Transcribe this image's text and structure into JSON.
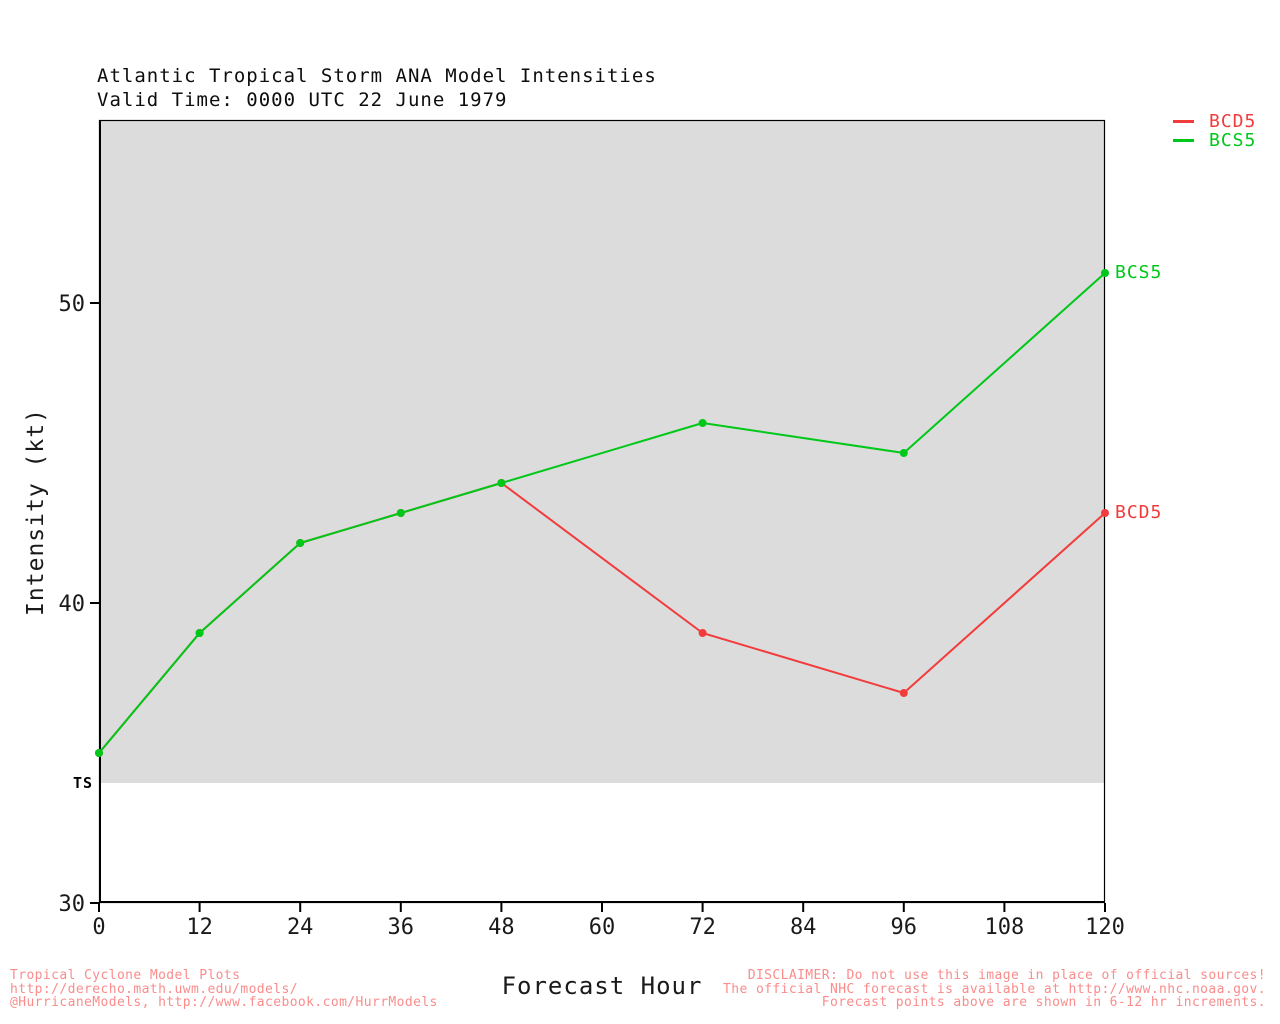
{
  "header": {
    "title": "Atlantic Tropical Storm ANA Model Intensities",
    "valid_time": "Valid Time: 0000 UTC 22 June 1979"
  },
  "axes": {
    "y_label": "Intensity (kt)",
    "x_label": "Forecast Hour",
    "ts_marker": "TS"
  },
  "footer": {
    "left_lines": [
      "Tropical Cyclone Model Plots",
      "http://derecho.math.uwm.edu/models/",
      "@HurricaneModels, http://www.facebook.com/HurrModels"
    ],
    "right_lines": [
      "DISCLAIMER: Do not use this image in place of official sources!",
      "The official NHC forecast is available at http://www.nhc.noaa.gov.",
      "Forecast points above are shown in 6-12 hr increments."
    ]
  },
  "chart_data": {
    "type": "line",
    "title": "Atlantic Tropical Storm ANA Model Intensities",
    "subtitle": "Valid Time: 0000 UTC 22 June 1979",
    "xlabel": "Forecast Hour",
    "ylabel": "Intensity (kt)",
    "x": [
      0,
      12,
      24,
      36,
      48,
      72,
      96,
      120
    ],
    "series": [
      {
        "name": "BCD5",
        "color": "#f23b3b",
        "values": [
          35,
          39,
          42,
          43,
          44,
          39,
          37,
          43
        ]
      },
      {
        "name": "BCS5",
        "color": "#00c818",
        "values": [
          35,
          39,
          42,
          43,
          44,
          46,
          45,
          51
        ]
      }
    ],
    "xticks": [
      0,
      12,
      24,
      36,
      48,
      60,
      72,
      84,
      96,
      108,
      120
    ],
    "yticks": [
      30,
      40,
      50
    ],
    "xlim": [
      0,
      120
    ],
    "ylim": [
      30,
      56.1
    ],
    "ts_threshold": 34,
    "shaded_region": {
      "from": 34,
      "to": 56.1,
      "color": "#dcdcdc",
      "label": "TS"
    },
    "grid": false,
    "legend_position": "top-right",
    "axis_color": "#000000",
    "tick_label_color": "#1a1a1a"
  }
}
